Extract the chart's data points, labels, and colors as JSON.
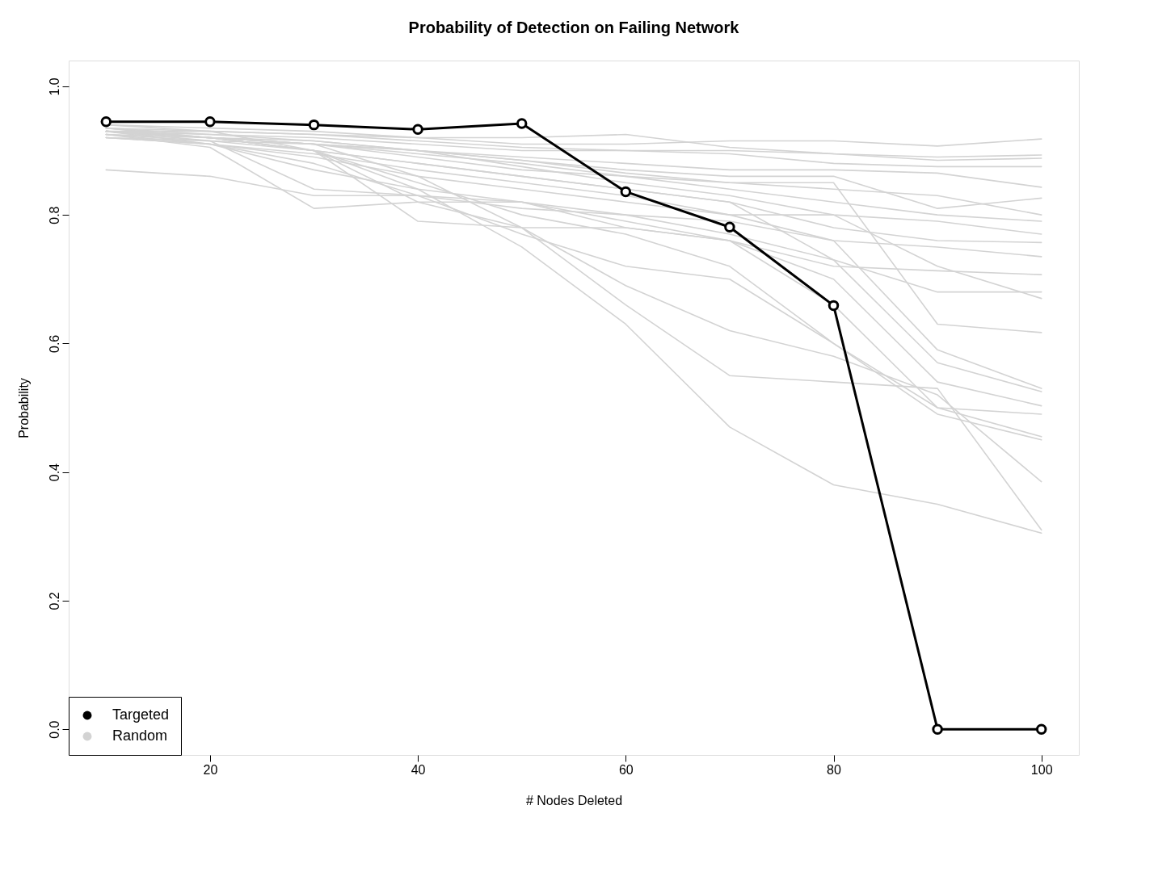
{
  "chart_data": {
    "type": "line",
    "title": "Probability of Detection on Failing Network",
    "xlabel": "# Nodes Deleted",
    "ylabel": "Probability",
    "x": [
      10,
      20,
      30,
      40,
      50,
      60,
      70,
      80,
      90,
      100
    ],
    "xlim": [
      6.4,
      103.6
    ],
    "xticks": [
      20,
      40,
      60,
      80,
      100
    ],
    "ylim": [
      -0.04,
      1.04
    ],
    "yticks": [
      {
        "value": 0,
        "label": "0.0"
      },
      {
        "value": 0.2,
        "label": "0.2"
      },
      {
        "value": 0.4,
        "label": "0.4"
      },
      {
        "value": 0.6,
        "label": "0.6"
      },
      {
        "value": 0.8,
        "label": "0.8"
      },
      {
        "value": 1,
        "label": "1.0"
      }
    ],
    "grid": false,
    "legend": "bottom left",
    "line_style": "solid",
    "series": [
      {
        "name": "Targeted",
        "color": "#000000",
        "marker": "circle",
        "values": [
          0.945,
          0.945,
          0.94,
          0.933,
          0.942,
          0.836,
          0.781,
          0.659,
          0,
          0
        ]
      },
      {
        "name": "Random",
        "color": "#d3d3d3",
        "values": [
          0.935,
          0.93,
          0.925,
          0.92,
          0.91,
          0.91,
          0.915,
          0.915,
          0.907,
          0.918
        ]
      },
      {
        "color": "#d3d3d3",
        "values": [
          0.94,
          0.935,
          0.93,
          0.92,
          0.92,
          0.925,
          0.905,
          0.895,
          0.89,
          0.893
        ]
      },
      {
        "color": "#d3d3d3",
        "values": [
          0.93,
          0.93,
          0.925,
          0.915,
          0.905,
          0.9,
          0.9,
          0.895,
          0.885,
          0.888
        ]
      },
      {
        "color": "#d3d3d3",
        "values": [
          0.93,
          0.925,
          0.92,
          0.91,
          0.9,
          0.9,
          0.895,
          0.88,
          0.875,
          0.875
        ]
      },
      {
        "color": "#d3d3d3",
        "values": [
          0.925,
          0.92,
          0.915,
          0.9,
          0.89,
          0.88,
          0.87,
          0.87,
          0.865,
          0.843
        ]
      },
      {
        "color": "#d3d3d3",
        "values": [
          0.93,
          0.92,
          0.91,
          0.9,
          0.885,
          0.87,
          0.86,
          0.86,
          0.81,
          0.826
        ]
      },
      {
        "color": "#d3d3d3",
        "values": [
          0.935,
          0.925,
          0.915,
          0.9,
          0.885,
          0.865,
          0.85,
          0.84,
          0.83,
          0.8
        ]
      },
      {
        "color": "#d3d3d3",
        "values": [
          0.92,
          0.915,
          0.91,
          0.895,
          0.88,
          0.86,
          0.84,
          0.82,
          0.8,
          0.79
        ]
      },
      {
        "color": "#d3d3d3",
        "values": [
          0.93,
          0.92,
          0.91,
          0.9,
          0.875,
          0.85,
          0.83,
          0.8,
          0.79,
          0.77
        ]
      },
      {
        "color": "#d3d3d3",
        "values": [
          0.925,
          0.915,
          0.9,
          0.88,
          0.86,
          0.84,
          0.82,
          0.78,
          0.76,
          0.757
        ]
      },
      {
        "color": "#d3d3d3",
        "values": [
          0.92,
          0.91,
          0.895,
          0.87,
          0.85,
          0.83,
          0.8,
          0.76,
          0.75,
          0.735
        ]
      },
      {
        "color": "#d3d3d3",
        "values": [
          0.87,
          0.86,
          0.83,
          0.83,
          0.82,
          0.78,
          0.76,
          0.72,
          0.713,
          0.707
        ]
      },
      {
        "color": "#d3d3d3",
        "values": [
          0.93,
          0.92,
          0.9,
          0.88,
          0.86,
          0.84,
          0.82,
          0.73,
          0.68,
          0.68
        ]
      },
      {
        "color": "#d3d3d3",
        "values": [
          0.925,
          0.91,
          0.89,
          0.86,
          0.84,
          0.82,
          0.8,
          0.8,
          0.72,
          0.67
        ]
      },
      {
        "color": "#d3d3d3",
        "values": [
          0.935,
          0.92,
          0.91,
          0.89,
          0.87,
          0.86,
          0.85,
          0.85,
          0.63,
          0.617
        ]
      },
      {
        "color": "#d3d3d3",
        "values": [
          0.92,
          0.91,
          0.87,
          0.84,
          0.82,
          0.8,
          0.79,
          0.76,
          0.59,
          0.53
        ]
      },
      {
        "color": "#d3d3d3",
        "values": [
          0.93,
          0.915,
          0.84,
          0.83,
          0.81,
          0.8,
          0.77,
          0.73,
          0.57,
          0.525
        ]
      },
      {
        "color": "#d3d3d3",
        "values": [
          0.925,
          0.905,
          0.81,
          0.82,
          0.82,
          0.79,
          0.76,
          0.7,
          0.54,
          0.503
        ]
      },
      {
        "color": "#d3d3d3",
        "values": [
          0.93,
          0.92,
          0.9,
          0.79,
          0.78,
          0.78,
          0.76,
          0.66,
          0.5,
          0.49
        ]
      },
      {
        "color": "#d3d3d3",
        "values": [
          0.935,
          0.92,
          0.9,
          0.85,
          0.8,
          0.77,
          0.72,
          0.6,
          0.5,
          0.455
        ]
      },
      {
        "color": "#d3d3d3",
        "values": [
          0.93,
          0.91,
          0.88,
          0.83,
          0.77,
          0.72,
          0.7,
          0.6,
          0.49,
          0.45
        ]
      },
      {
        "color": "#d3d3d3",
        "values": [
          0.94,
          0.93,
          0.9,
          0.82,
          0.78,
          0.69,
          0.62,
          0.58,
          0.52,
          0.385
        ]
      },
      {
        "color": "#d3d3d3",
        "values": [
          0.93,
          0.92,
          0.91,
          0.86,
          0.78,
          0.66,
          0.55,
          0.54,
          0.53,
          0.31
        ]
      },
      {
        "color": "#d3d3d3",
        "values": [
          0.93,
          0.92,
          0.9,
          0.84,
          0.75,
          0.63,
          0.47,
          0.38,
          0.35,
          0.305
        ]
      }
    ]
  }
}
